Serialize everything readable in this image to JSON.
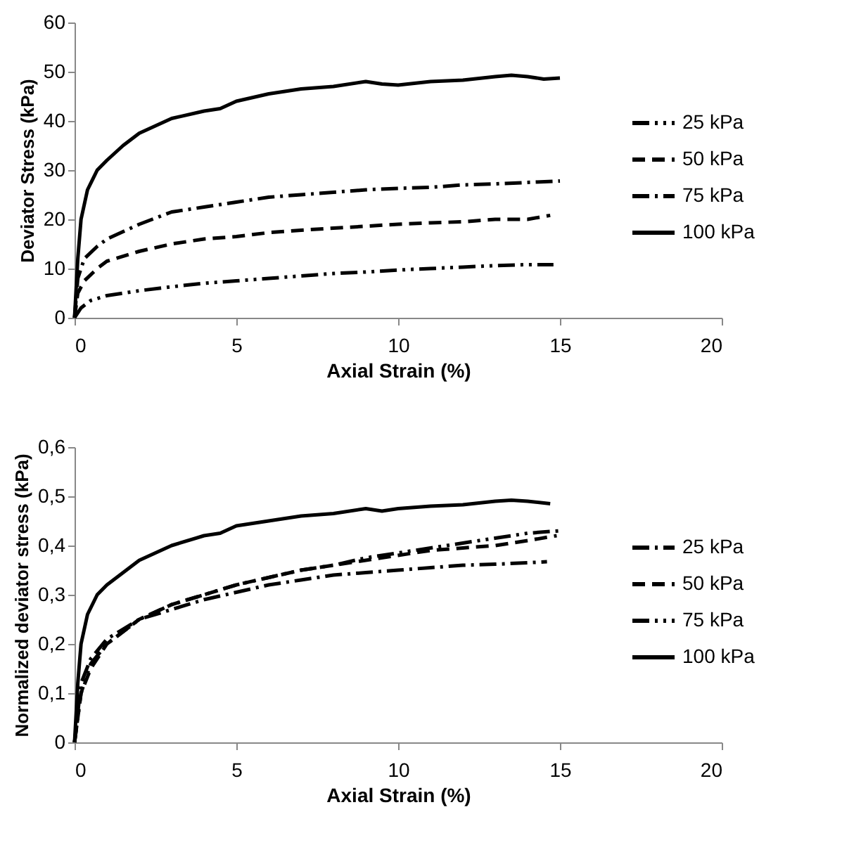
{
  "chart_data": [
    {
      "type": "line",
      "xlabel": "Axial Strain (%)",
      "ylabel": "Deviator Stress (kPa)",
      "xlim": [
        0,
        20
      ],
      "xticks": [
        0,
        5,
        10,
        15,
        20
      ],
      "ylim": [
        0,
        60
      ],
      "yticks": [
        0,
        10,
        20,
        30,
        40,
        50,
        60
      ],
      "grid": false,
      "legend": "right",
      "marker": "none",
      "series": [
        {
          "name": "25 kPa",
          "color": "#000000",
          "line_style": "dotted",
          "x": [
            0,
            0.2,
            0.5,
            1,
            2,
            3,
            4,
            5,
            6,
            7,
            8,
            9,
            10,
            11,
            12,
            13,
            14,
            14.8
          ],
          "values": [
            0,
            2,
            3.5,
            4.5,
            5.5,
            6.3,
            7,
            7.5,
            8,
            8.5,
            9,
            9.3,
            9.7,
            10,
            10.3,
            10.6,
            10.8,
            10.8
          ]
        },
        {
          "name": "50 kPa",
          "color": "#000000",
          "line_style": "dashed",
          "x": [
            0,
            0.1,
            0.3,
            0.7,
            1,
            2,
            3,
            4,
            5,
            6,
            7,
            8,
            9,
            10,
            11,
            12,
            13,
            14,
            14.7
          ],
          "values": [
            0,
            5,
            7.5,
            10,
            11.5,
            13.5,
            15,
            16,
            16.5,
            17.3,
            17.8,
            18.2,
            18.6,
            19,
            19.3,
            19.5,
            20,
            20,
            20.8
          ]
        },
        {
          "name": "75 kPa",
          "color": "#000000",
          "line_style": "dashdot",
          "x": [
            0,
            0.1,
            0.3,
            0.7,
            1,
            2,
            3,
            4,
            5,
            6,
            7,
            8,
            9,
            10,
            11,
            12,
            13,
            14,
            15
          ],
          "values": [
            0,
            8,
            12,
            14.5,
            16,
            19,
            21.5,
            22.5,
            23.5,
            24.5,
            25,
            25.5,
            26,
            26.3,
            26.5,
            27,
            27.2,
            27.5,
            27.8
          ]
        },
        {
          "name": "100 kPa",
          "color": "#000000",
          "line_style": "solid",
          "x": [
            0,
            0.1,
            0.2,
            0.4,
            0.7,
            1,
            1.5,
            2,
            3,
            4,
            4.5,
            5,
            6,
            7,
            8,
            9,
            9.5,
            10,
            11,
            12,
            13,
            13.5,
            14,
            14.5,
            15
          ],
          "values": [
            0,
            12,
            20,
            26,
            30,
            32,
            35,
            37.5,
            40.5,
            42,
            42.5,
            44,
            45.5,
            46.5,
            47,
            48,
            47.5,
            47.3,
            48,
            48.3,
            49,
            49.3,
            49,
            48.5,
            48.7
          ]
        }
      ]
    },
    {
      "type": "line",
      "xlabel": "Axial Strain (%)",
      "ylabel": "Normalized deviator stress (kPa)",
      "xlim": [
        0,
        20
      ],
      "xticks": [
        0,
        5,
        10,
        15,
        20
      ],
      "ylim": [
        0,
        0.6
      ],
      "yticks": [
        0,
        {
          "value": 0.1,
          "label": "0,1"
        },
        {
          "value": 0.2,
          "label": "0,2"
        },
        {
          "value": 0.3,
          "label": "0,3"
        },
        {
          "value": 0.4,
          "label": "0,4"
        },
        {
          "value": 0.5,
          "label": "0,5"
        },
        {
          "value": 0.6,
          "label": "0,6"
        }
      ],
      "grid": false,
      "legend": "right",
      "marker": "none",
      "series": [
        {
          "name": "25 kPa",
          "color": "#000000",
          "line_style": "dashdot",
          "x": [
            0,
            0.2,
            0.5,
            1,
            2,
            3,
            4,
            5,
            6,
            7,
            8,
            9,
            10,
            11,
            12,
            13,
            14,
            14.6
          ],
          "values": [
            0,
            0.12,
            0.17,
            0.21,
            0.25,
            0.27,
            0.29,
            0.305,
            0.32,
            0.33,
            0.34,
            0.345,
            0.35,
            0.355,
            0.36,
            0.362,
            0.365,
            0.367
          ]
        },
        {
          "name": "50 kPa",
          "color": "#000000",
          "line_style": "dashed",
          "x": [
            0,
            0.2,
            0.5,
            1,
            2,
            3,
            4,
            5,
            6,
            7,
            8,
            9,
            10,
            11,
            12,
            13,
            14,
            14.9
          ],
          "values": [
            0,
            0.1,
            0.15,
            0.2,
            0.25,
            0.28,
            0.3,
            0.32,
            0.335,
            0.35,
            0.36,
            0.37,
            0.38,
            0.39,
            0.395,
            0.4,
            0.41,
            0.42
          ]
        },
        {
          "name": "75 kPa",
          "color": "#000000",
          "line_style": "dotted",
          "x": [
            0,
            0.2,
            0.5,
            1,
            2,
            3,
            4,
            5,
            6,
            7,
            8,
            9,
            10,
            11,
            12,
            13,
            14,
            15
          ],
          "values": [
            0,
            0.1,
            0.16,
            0.2,
            0.25,
            0.28,
            0.3,
            0.32,
            0.335,
            0.35,
            0.36,
            0.375,
            0.385,
            0.395,
            0.405,
            0.415,
            0.425,
            0.43
          ]
        },
        {
          "name": "100 kPa",
          "color": "#000000",
          "line_style": "solid",
          "x": [
            0,
            0.1,
            0.2,
            0.4,
            0.7,
            1,
            2,
            3,
            4,
            4.5,
            5,
            6,
            7,
            8,
            9,
            9.5,
            10,
            11,
            12,
            13,
            13.5,
            14,
            14.7
          ],
          "values": [
            0,
            0.12,
            0.2,
            0.26,
            0.3,
            0.32,
            0.37,
            0.4,
            0.42,
            0.425,
            0.44,
            0.45,
            0.46,
            0.465,
            0.475,
            0.47,
            0.475,
            0.48,
            0.483,
            0.49,
            0.492,
            0.49,
            0.485
          ]
        }
      ]
    }
  ]
}
